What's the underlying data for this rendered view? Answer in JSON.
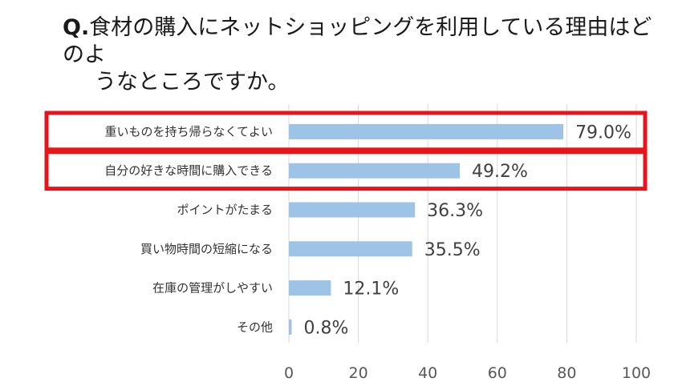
{
  "question": {
    "prefix": "Q.",
    "line1": "食材の購入にネットショッピングを利用している理由はどのよ",
    "line2": "うなところですか。"
  },
  "chart_data": {
    "type": "bar",
    "orientation": "horizontal",
    "categories": [
      "重いものを持ち帰らなくてよい",
      "自分の好きな時間に購入できる",
      "ポイントがたまる",
      "買い物時間の短縮になる",
      "在庫の管理がしやすい",
      "その他"
    ],
    "values": [
      79.0,
      49.2,
      36.3,
      35.5,
      12.1,
      0.8
    ],
    "value_labels": [
      "79.0%",
      "49.2%",
      "36.3%",
      "35.5%",
      "12.1%",
      "0.8%"
    ],
    "xlim": [
      0,
      100
    ],
    "xticks": [
      "0",
      "20",
      "40",
      "60",
      "80",
      "100"
    ],
    "grid": true,
    "bar_color": "#9dc3e6",
    "grid_color": "#d9d9d9",
    "highlight_color": "#e8141b",
    "highlighted_categories": [
      0,
      1
    ]
  }
}
